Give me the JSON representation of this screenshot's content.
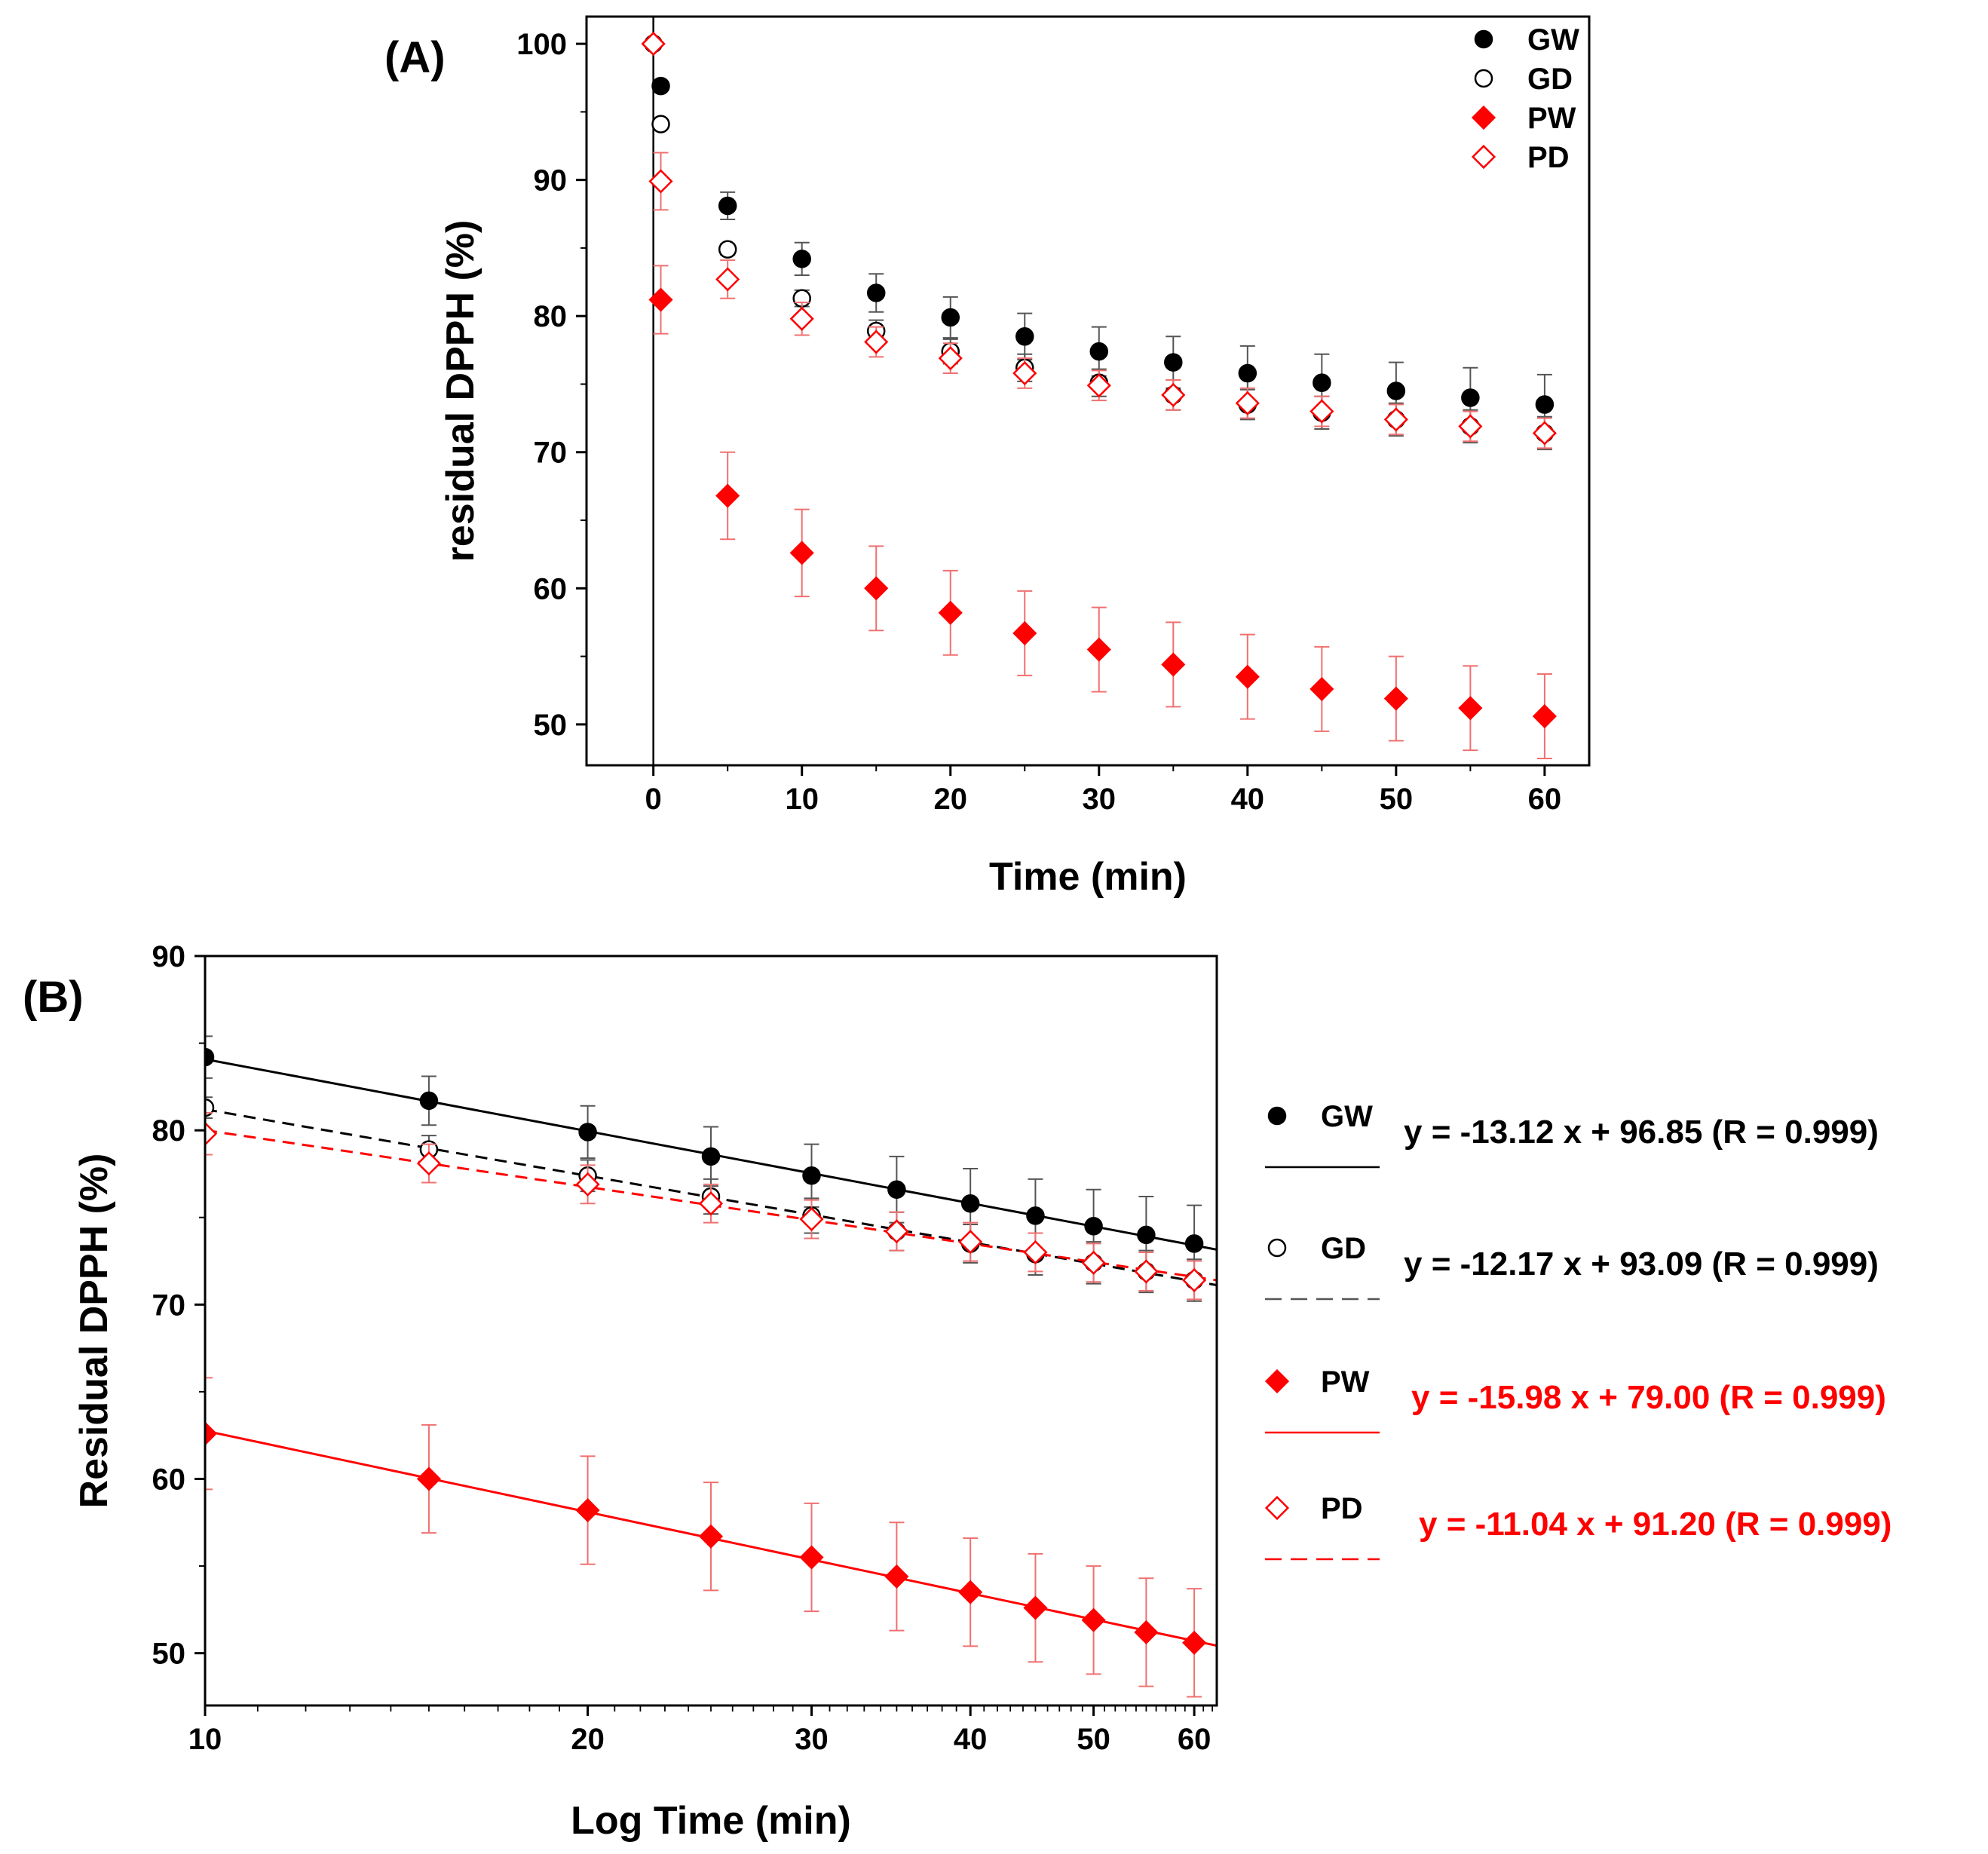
{
  "chart_data": [
    {
      "panel_label": "(A)",
      "type": "scatter",
      "xlabel": "Time (min)",
      "ylabel": "residual DPPH (%)",
      "xlim": [
        -4.5,
        63
      ],
      "ylim": [
        47,
        102
      ],
      "xticks": [
        0,
        10,
        20,
        30,
        40,
        50,
        60
      ],
      "yticks": [
        50,
        60,
        70,
        80,
        90,
        100
      ],
      "vline_x": 0,
      "series": [
        {
          "name": "GW",
          "marker": "circle-filled",
          "color": "#000000",
          "x": [
            0,
            0.5,
            5,
            10,
            15,
            20,
            25,
            30,
            35,
            40,
            45,
            50,
            55,
            60
          ],
          "y": [
            100,
            96.9,
            88.1,
            84.2,
            81.7,
            79.9,
            78.5,
            77.4,
            76.6,
            75.8,
            75.1,
            74.5,
            74.0,
            73.5
          ],
          "err": [
            0,
            0,
            1.0,
            1.2,
            1.4,
            1.5,
            1.7,
            1.8,
            1.9,
            2.0,
            2.1,
            2.1,
            2.2,
            2.2
          ]
        },
        {
          "name": "GD",
          "marker": "circle-open",
          "color": "#000000",
          "x": [
            0,
            0.5,
            5,
            10,
            15,
            20,
            25,
            30,
            35,
            40,
            45,
            50,
            55,
            60
          ],
          "y": [
            100,
            94.1,
            84.9,
            81.3,
            78.9,
            77.4,
            76.2,
            75.1,
            74.2,
            73.5,
            72.9,
            72.4,
            71.9,
            71.4
          ],
          "err": [
            0,
            0,
            0.4,
            0.6,
            0.8,
            0.9,
            1.0,
            1.0,
            1.1,
            1.1,
            1.2,
            1.2,
            1.2,
            1.2
          ]
        },
        {
          "name": "PW",
          "marker": "diamond-filled",
          "color": "#ff0000",
          "x": [
            0,
            0.5,
            5,
            10,
            15,
            20,
            25,
            30,
            35,
            40,
            45,
            50,
            55,
            60
          ],
          "y": [
            100,
            81.2,
            66.8,
            62.6,
            60.0,
            58.2,
            56.7,
            55.5,
            54.4,
            53.5,
            52.6,
            51.9,
            51.2,
            50.6
          ],
          "err": [
            0,
            2.5,
            3.2,
            3.2,
            3.1,
            3.1,
            3.1,
            3.1,
            3.1,
            3.1,
            3.1,
            3.1,
            3.1,
            3.1
          ]
        },
        {
          "name": "PD",
          "marker": "diamond-open",
          "color": "#ff0000",
          "x": [
            0,
            0.5,
            5,
            10,
            15,
            20,
            25,
            30,
            35,
            40,
            45,
            50,
            55,
            60
          ],
          "y": [
            100,
            89.9,
            82.7,
            79.8,
            78.1,
            76.9,
            75.8,
            74.9,
            74.2,
            73.6,
            73.0,
            72.4,
            71.9,
            71.4
          ],
          "err": [
            0,
            2.1,
            1.4,
            1.2,
            1.1,
            1.1,
            1.1,
            1.1,
            1.1,
            1.1,
            1.1,
            1.1,
            1.1,
            1.1
          ]
        }
      ],
      "legend": {
        "position": "top-right",
        "entries": [
          "GW",
          "GD",
          "PW",
          "PD"
        ]
      }
    },
    {
      "panel_label": "(B)",
      "type": "scatter",
      "xscale": "log",
      "xlabel": "Log Time (min)",
      "ylabel": "Residual DPPH (%)",
      "xlim": [
        10,
        62.5
      ],
      "ylim": [
        47,
        90
      ],
      "xticks": [
        10,
        20,
        30,
        40,
        50,
        60
      ],
      "yticks": [
        50,
        60,
        70,
        80,
        90
      ],
      "series": [
        {
          "name": "GW",
          "marker": "circle-filled",
          "color": "#000000",
          "line": "solid",
          "x": [
            10,
            15,
            20,
            25,
            30,
            35,
            40,
            45,
            50,
            55,
            60
          ],
          "y": [
            84.2,
            81.7,
            79.9,
            78.5,
            77.4,
            76.6,
            75.8,
            75.1,
            74.5,
            74.0,
            73.5
          ],
          "err": [
            1.2,
            1.4,
            1.5,
            1.7,
            1.8,
            1.9,
            2.0,
            2.1,
            2.1,
            2.2,
            2.2
          ],
          "fit": {
            "slope": -13.12,
            "intercept": 96.85
          },
          "equation": "y = -13.12 x + 96.85 (R = 0.999)"
        },
        {
          "name": "GD",
          "marker": "circle-open",
          "color": "#000000",
          "line": "dashed",
          "x": [
            10,
            15,
            20,
            25,
            30,
            35,
            40,
            45,
            50,
            55,
            60
          ],
          "y": [
            81.3,
            78.9,
            77.4,
            76.2,
            75.1,
            74.2,
            73.5,
            72.9,
            72.4,
            71.9,
            71.4
          ],
          "err": [
            0.6,
            0.8,
            0.9,
            1.0,
            1.0,
            1.1,
            1.1,
            1.2,
            1.2,
            1.2,
            1.2
          ],
          "fit": {
            "slope": -12.17,
            "intercept": 93.09
          },
          "equation": "y = -12.17 x + 93.09 (R = 0.999)"
        },
        {
          "name": "PW",
          "marker": "diamond-filled",
          "color": "#ff0000",
          "line": "solid",
          "x": [
            10,
            15,
            20,
            25,
            30,
            35,
            40,
            45,
            50,
            55,
            60
          ],
          "y": [
            62.6,
            60.0,
            58.2,
            56.7,
            55.5,
            54.4,
            53.5,
            52.6,
            51.9,
            51.2,
            50.6
          ],
          "err": [
            3.2,
            3.1,
            3.1,
            3.1,
            3.1,
            3.1,
            3.1,
            3.1,
            3.1,
            3.1,
            3.1
          ],
          "fit": {
            "slope": -15.98,
            "intercept": 79.0
          },
          "equation": "y = -15.98 x + 79.00 (R = 0.999)"
        },
        {
          "name": "PD",
          "marker": "diamond-open",
          "color": "#ff0000",
          "line": "dashed",
          "x": [
            10,
            15,
            20,
            25,
            30,
            35,
            40,
            45,
            50,
            55,
            60
          ],
          "y": [
            79.8,
            78.1,
            76.9,
            75.8,
            74.9,
            74.2,
            73.6,
            73.0,
            72.4,
            71.9,
            71.4
          ],
          "err": [
            1.2,
            1.1,
            1.1,
            1.1,
            1.1,
            1.1,
            1.1,
            1.1,
            1.1,
            1.1,
            1.1
          ],
          "fit": {
            "slope": -11.04,
            "intercept": 91.2
          },
          "equation": "y = -11.04 x + 91.20 (R = 0.999)"
        }
      ],
      "legend": {
        "position": "right-outside",
        "entries": [
          "GW",
          "GD",
          "PW",
          "PD"
        ]
      }
    }
  ]
}
